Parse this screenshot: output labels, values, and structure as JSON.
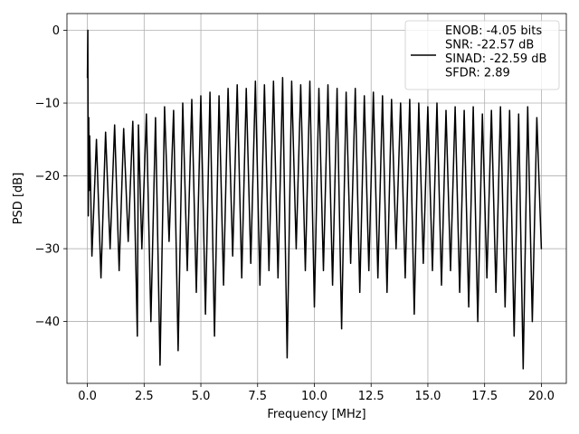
{
  "chart_data": {
    "type": "line",
    "xlabel": "Frequency [MHz]",
    "ylabel": "PSD [dB]",
    "xlim": [
      -0.9,
      21.1
    ],
    "ylim": [
      -48.5,
      2.3
    ],
    "xticks": [
      0.0,
      2.5,
      5.0,
      7.5,
      10.0,
      12.5,
      15.0,
      17.5,
      20.0
    ],
    "xtick_labels": [
      "0.0",
      "2.5",
      "5.0",
      "7.5",
      "10.0",
      "12.5",
      "15.0",
      "17.5",
      "20.0"
    ],
    "yticks": [
      0,
      -10,
      -20,
      -30,
      -40
    ],
    "ytick_labels": [
      "0",
      "−10",
      "−20",
      "−30",
      "−40"
    ],
    "grid": true,
    "legend_position": "top-right",
    "series": [
      {
        "name": "ENOB: -4.05 bits\nSNR: -22.57 dB\nSINAD: -22.59 dB\nSFDR: 2.89",
        "legend_lines": [
          "ENOB: -4.05 bits",
          "SNR: -22.57 dB",
          "SINAD: -22.59 dB",
          "SFDR: 2.89"
        ],
        "color": "#000000",
        "x": [
          0.0,
          0.02,
          0.04,
          0.06,
          0.08,
          0.1,
          0.2,
          0.4,
          0.6,
          0.8,
          1.0,
          1.2,
          1.4,
          1.6,
          1.8,
          2.0,
          2.2,
          2.25,
          2.4,
          2.6,
          2.8,
          3.0,
          3.2,
          3.4,
          3.6,
          3.8,
          4.0,
          4.2,
          4.4,
          4.6,
          4.8,
          5.0,
          5.2,
          5.4,
          5.6,
          5.8,
          6.0,
          6.2,
          6.4,
          6.6,
          6.8,
          7.0,
          7.2,
          7.4,
          7.6,
          7.8,
          8.0,
          8.2,
          8.4,
          8.6,
          8.8,
          9.0,
          9.2,
          9.4,
          9.6,
          9.8,
          10.0,
          10.2,
          10.4,
          10.6,
          10.8,
          11.0,
          11.2,
          11.4,
          11.6,
          11.8,
          12.0,
          12.2,
          12.4,
          12.6,
          12.8,
          13.0,
          13.2,
          13.4,
          13.6,
          13.8,
          14.0,
          14.2,
          14.4,
          14.6,
          14.8,
          15.0,
          15.2,
          15.4,
          15.6,
          15.8,
          16.0,
          16.2,
          16.4,
          16.6,
          16.8,
          17.0,
          17.2,
          17.4,
          17.6,
          17.8,
          18.0,
          18.2,
          18.4,
          18.6,
          18.8,
          19.0,
          19.2,
          19.4,
          19.6,
          19.8,
          20.0
        ],
        "y": [
          -6.5,
          0.0,
          -25.5,
          -12.0,
          -22.0,
          -14.5,
          -31.0,
          -15.0,
          -34.0,
          -14.0,
          -30.0,
          -13.0,
          -33.0,
          -13.5,
          -29.0,
          -12.5,
          -42.0,
          -13.0,
          -30.0,
          -11.5,
          -40.0,
          -12.0,
          -46.0,
          -10.5,
          -29.0,
          -11.0,
          -44.0,
          -10.0,
          -33.0,
          -9.5,
          -36.0,
          -9.0,
          -39.0,
          -8.5,
          -42.0,
          -9.0,
          -35.0,
          -8.0,
          -31.0,
          -7.5,
          -34.0,
          -8.0,
          -32.0,
          -7.0,
          -35.0,
          -7.5,
          -33.0,
          -7.0,
          -34.0,
          -6.5,
          -45.0,
          -7.0,
          -30.0,
          -7.5,
          -33.0,
          -7.0,
          -38.0,
          -8.0,
          -33.0,
          -7.5,
          -35.0,
          -8.0,
          -41.0,
          -8.5,
          -32.0,
          -8.0,
          -36.0,
          -9.0,
          -33.0,
          -8.5,
          -34.0,
          -9.0,
          -36.0,
          -9.5,
          -30.0,
          -10.0,
          -34.0,
          -9.5,
          -39.0,
          -10.0,
          -32.0,
          -10.5,
          -33.0,
          -10.0,
          -35.0,
          -11.0,
          -33.0,
          -10.5,
          -36.0,
          -11.0,
          -38.0,
          -10.5,
          -40.0,
          -11.5,
          -34.0,
          -11.0,
          -36.0,
          -10.5,
          -38.0,
          -11.0,
          -42.0,
          -11.5,
          -46.5,
          -10.5,
          -40.0,
          -12.0,
          -30.0
        ]
      }
    ]
  }
}
